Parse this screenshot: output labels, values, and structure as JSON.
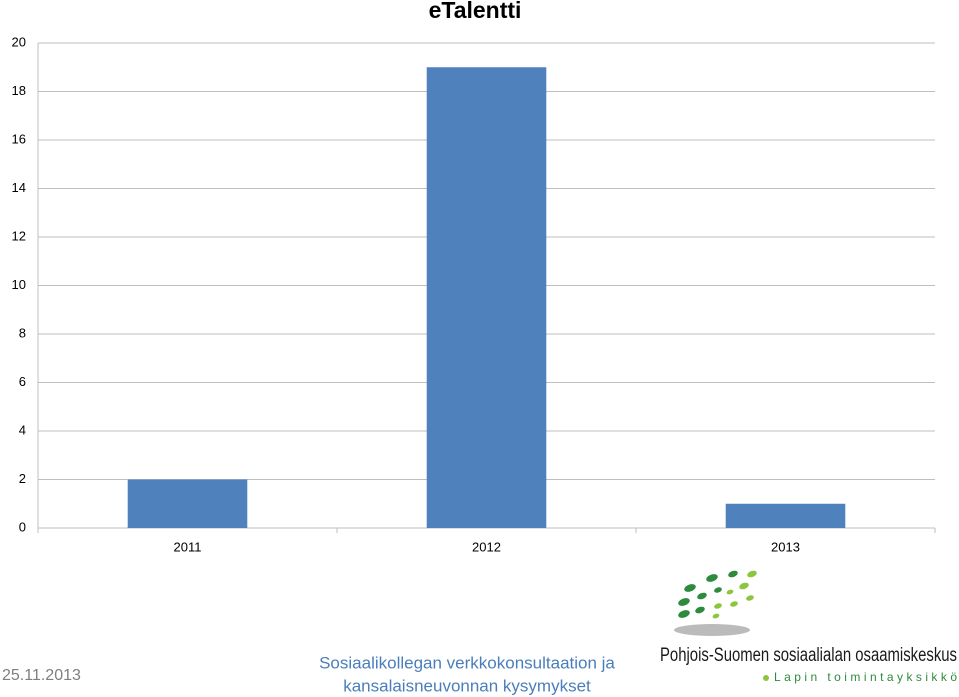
{
  "chart_data": {
    "type": "bar",
    "title": "eTalentti",
    "categories": [
      "2011",
      "2012",
      "2013"
    ],
    "values": [
      2,
      19,
      1
    ],
    "color": "#4f81bd",
    "ylim": [
      0,
      20
    ],
    "yticks": [
      0,
      2,
      4,
      6,
      8,
      10,
      12,
      14,
      16,
      18,
      20
    ],
    "grid": true
  },
  "footer": {
    "date": "25.11.2013",
    "subtitle": [
      "Sosiaalikollegan verkkokonsultaation ja",
      "kansalaisneuvonnan kysymykset"
    ],
    "logo_title": "Pohjois-Suomen sosiaalialan osaamiskeskus",
    "logo_subtitle": "Lapin toimintayksikkö"
  }
}
